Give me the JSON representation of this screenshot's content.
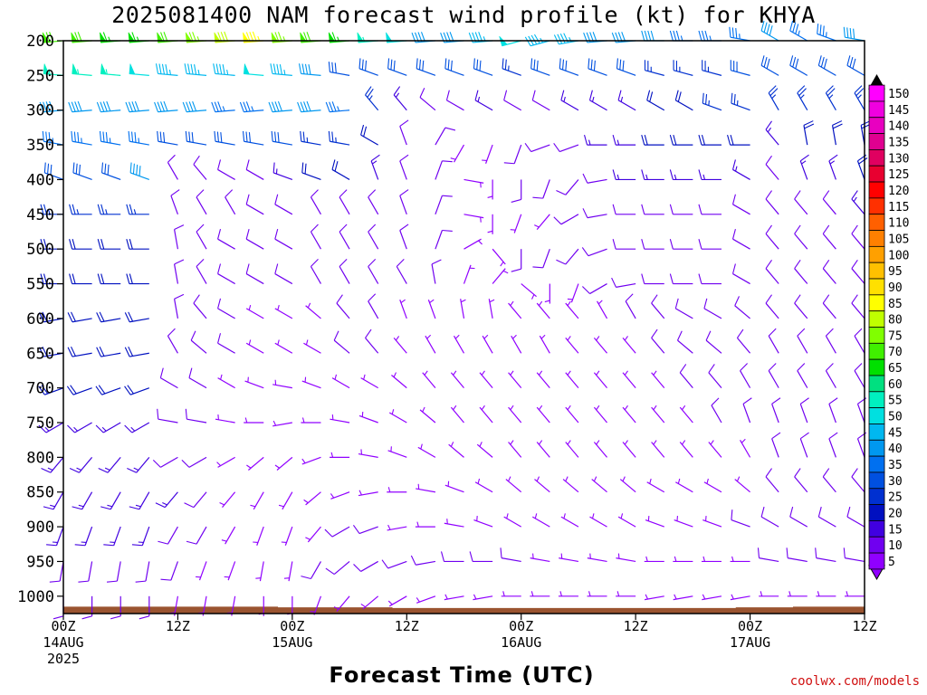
{
  "title": "2025081400 NAM forecast wind profile (kt) for KHYA",
  "xlabel": "Forecast Time (UTC)",
  "credit": "coolwx.com/models",
  "colors": {
    "ground": "#9a5430",
    "frame": "#000000"
  },
  "chart_data": {
    "type": "wind-barb time-height section",
    "y_unit": "hPa",
    "y_ticks": [
      200,
      250,
      300,
      350,
      400,
      450,
      500,
      550,
      600,
      650,
      700,
      750,
      800,
      850,
      900,
      950,
      1000
    ],
    "y_range": [
      1025,
      200
    ],
    "x_range_hours": [
      0,
      84
    ],
    "x_ticks": [
      {
        "h": 0,
        "labels": [
          "00Z",
          "14AUG",
          "2025"
        ]
      },
      {
        "h": 12,
        "labels": [
          "12Z"
        ]
      },
      {
        "h": 24,
        "labels": [
          "00Z",
          "15AUG"
        ]
      },
      {
        "h": 36,
        "labels": [
          "12Z"
        ]
      },
      {
        "h": 48,
        "labels": [
          "00Z",
          "16AUG"
        ]
      },
      {
        "h": 60,
        "labels": [
          "12Z"
        ]
      },
      {
        "h": 72,
        "labels": [
          "00Z",
          "17AUG"
        ]
      },
      {
        "h": 84,
        "labels": [
          "12Z"
        ]
      }
    ],
    "forecast_hours": [
      0,
      3,
      6,
      9,
      12,
      15,
      18,
      21,
      24,
      27,
      30,
      33,
      36,
      39,
      42,
      45,
      48,
      51,
      54,
      57,
      60,
      63,
      66,
      69,
      72,
      75,
      78,
      81,
      84
    ],
    "levels": [
      200,
      250,
      300,
      350,
      400,
      450,
      500,
      550,
      600,
      650,
      700,
      750,
      800,
      850,
      900,
      950,
      1000
    ],
    "speed_kt_by_level": {
      "200": [
        70,
        70,
        65,
        65,
        68,
        75,
        80,
        85,
        75,
        70,
        65,
        55,
        50,
        40,
        40,
        45,
        50,
        45,
        45,
        40,
        40,
        40,
        35,
        35,
        35,
        40,
        35,
        35,
        40
      ],
      "250": [
        55,
        55,
        55,
        50,
        45,
        45,
        45,
        50,
        45,
        40,
        30,
        30,
        30,
        30,
        30,
        30,
        25,
        30,
        30,
        30,
        30,
        25,
        25,
        25,
        30,
        30,
        30,
        30,
        30
      ],
      "300": [
        40,
        40,
        40,
        40,
        40,
        40,
        35,
        35,
        40,
        40,
        35,
        25,
        15,
        10,
        10,
        15,
        10,
        10,
        15,
        15,
        15,
        20,
        20,
        25,
        25,
        25,
        25,
        25,
        25
      ],
      "350": [
        35,
        35,
        35,
        35,
        30,
        30,
        30,
        30,
        30,
        25,
        25,
        20,
        10,
        10,
        5,
        5,
        10,
        10,
        10,
        15,
        15,
        20,
        20,
        20,
        20,
        15,
        20,
        20,
        20
      ],
      "400": [
        30,
        30,
        30,
        40,
        10,
        10,
        10,
        10,
        15,
        20,
        20,
        15,
        10,
        10,
        5,
        5,
        10,
        10,
        10,
        10,
        15,
        15,
        15,
        15,
        15,
        10,
        15,
        15,
        20
      ],
      "450": [
        25,
        25,
        25,
        25,
        10,
        10,
        10,
        10,
        10,
        10,
        10,
        10,
        10,
        10,
        5,
        5,
        5,
        5,
        10,
        10,
        10,
        10,
        10,
        10,
        10,
        10,
        10,
        10,
        15
      ],
      "500": [
        20,
        20,
        20,
        20,
        10,
        10,
        10,
        10,
        10,
        10,
        10,
        10,
        10,
        10,
        5,
        5,
        10,
        10,
        10,
        10,
        10,
        10,
        10,
        10,
        10,
        10,
        10,
        10,
        10
      ],
      "550": [
        20,
        20,
        20,
        20,
        10,
        10,
        10,
        10,
        10,
        10,
        10,
        10,
        10,
        10,
        5,
        5,
        5,
        5,
        5,
        10,
        10,
        10,
        10,
        10,
        10,
        10,
        10,
        10,
        10
      ],
      "600": [
        20,
        20,
        20,
        20,
        10,
        10,
        10,
        5,
        5,
        5,
        10,
        10,
        5,
        5,
        5,
        5,
        5,
        5,
        5,
        5,
        10,
        10,
        10,
        10,
        10,
        10,
        10,
        10,
        10
      ],
      "650": [
        20,
        20,
        20,
        20,
        10,
        10,
        10,
        5,
        5,
        5,
        10,
        10,
        5,
        5,
        5,
        5,
        5,
        5,
        5,
        5,
        5,
        10,
        10,
        10,
        10,
        10,
        10,
        10,
        10
      ],
      "700": [
        20,
        20,
        20,
        20,
        10,
        10,
        5,
        5,
        5,
        5,
        5,
        5,
        5,
        5,
        5,
        5,
        5,
        5,
        5,
        5,
        5,
        5,
        10,
        10,
        10,
        10,
        10,
        10,
        10
      ],
      "750": [
        15,
        15,
        15,
        15,
        10,
        10,
        5,
        5,
        5,
        5,
        5,
        5,
        5,
        5,
        5,
        5,
        5,
        5,
        5,
        5,
        5,
        5,
        5,
        10,
        10,
        10,
        10,
        10,
        10
      ],
      "800": [
        15,
        15,
        15,
        15,
        10,
        10,
        5,
        5,
        5,
        5,
        5,
        5,
        5,
        5,
        5,
        5,
        5,
        5,
        5,
        5,
        5,
        5,
        5,
        5,
        5,
        10,
        10,
        10,
        10
      ],
      "850": [
        15,
        15,
        15,
        15,
        15,
        10,
        5,
        5,
        5,
        5,
        5,
        5,
        5,
        5,
        5,
        5,
        5,
        5,
        5,
        5,
        5,
        5,
        5,
        5,
        5,
        10,
        10,
        10,
        10
      ],
      "900": [
        15,
        15,
        15,
        15,
        10,
        10,
        5,
        5,
        5,
        5,
        10,
        10,
        5,
        5,
        5,
        5,
        5,
        5,
        5,
        5,
        5,
        5,
        5,
        5,
        10,
        10,
        10,
        10,
        10
      ],
      "950": [
        10,
        10,
        10,
        10,
        10,
        5,
        5,
        5,
        5,
        10,
        10,
        10,
        10,
        10,
        10,
        10,
        10,
        5,
        5,
        5,
        5,
        5,
        5,
        5,
        5,
        10,
        10,
        10,
        10
      ],
      "1000": [
        10,
        10,
        10,
        10,
        5,
        5,
        5,
        5,
        5,
        5,
        5,
        5,
        5,
        5,
        5,
        5,
        5,
        5,
        5,
        5,
        5,
        5,
        5,
        5,
        5,
        5,
        5,
        5,
        5
      ]
    },
    "direction_deg_by_level": {
      "200": [
        265,
        265,
        265,
        265,
        265,
        265,
        265,
        265,
        265,
        265,
        265,
        265,
        265,
        265,
        265,
        265,
        255,
        255,
        260,
        265,
        265,
        270,
        270,
        270,
        280,
        300,
        300,
        290,
        280
      ],
      "250": [
        275,
        275,
        275,
        275,
        275,
        275,
        275,
        275,
        275,
        275,
        280,
        290,
        290,
        290,
        290,
        290,
        290,
        290,
        290,
        290,
        290,
        285,
        285,
        285,
        285,
        300,
        300,
        300,
        300
      ],
      "300": [
        265,
        265,
        265,
        265,
        265,
        265,
        265,
        265,
        265,
        265,
        265,
        320,
        320,
        310,
        300,
        300,
        300,
        300,
        300,
        300,
        300,
        300,
        300,
        290,
        290,
        330,
        330,
        330,
        330
      ],
      "350": [
        280,
        280,
        280,
        280,
        280,
        280,
        280,
        280,
        280,
        280,
        280,
        300,
        340,
        30,
        210,
        200,
        200,
        250,
        250,
        270,
        270,
        270,
        270,
        270,
        270,
        320,
        350,
        350,
        350
      ],
      "400": [
        290,
        290,
        290,
        290,
        330,
        320,
        300,
        300,
        290,
        290,
        300,
        340,
        340,
        20,
        100,
        180,
        180,
        200,
        220,
        260,
        270,
        270,
        270,
        270,
        300,
        320,
        340,
        340,
        340
      ],
      "450": [
        270,
        270,
        270,
        270,
        340,
        330,
        330,
        300,
        300,
        330,
        330,
        330,
        340,
        20,
        100,
        180,
        200,
        220,
        240,
        260,
        270,
        270,
        270,
        270,
        300,
        320,
        320,
        320,
        320
      ],
      "500": [
        270,
        270,
        270,
        270,
        350,
        330,
        300,
        300,
        300,
        330,
        330,
        330,
        340,
        20,
        60,
        140,
        180,
        200,
        220,
        250,
        270,
        270,
        270,
        270,
        300,
        320,
        320,
        320,
        320
      ],
      "550": [
        270,
        270,
        270,
        270,
        350,
        330,
        300,
        300,
        300,
        330,
        330,
        330,
        330,
        350,
        20,
        40,
        130,
        180,
        200,
        240,
        260,
        270,
        270,
        270,
        300,
        320,
        320,
        320,
        320
      ],
      "600": [
        260,
        260,
        260,
        260,
        350,
        320,
        300,
        300,
        300,
        310,
        320,
        330,
        340,
        340,
        350,
        350,
        320,
        320,
        320,
        330,
        330,
        320,
        300,
        300,
        310,
        320,
        320,
        320,
        320
      ],
      "650": [
        260,
        260,
        260,
        260,
        330,
        310,
        300,
        300,
        300,
        300,
        310,
        320,
        320,
        330,
        330,
        330,
        330,
        330,
        320,
        320,
        320,
        320,
        310,
        310,
        320,
        330,
        330,
        330,
        330
      ],
      "700": [
        250,
        250,
        250,
        250,
        300,
        300,
        300,
        290,
        280,
        290,
        300,
        300,
        310,
        320,
        320,
        320,
        320,
        320,
        320,
        320,
        320,
        320,
        320,
        320,
        330,
        330,
        330,
        330,
        330
      ],
      "750": [
        240,
        240,
        240,
        240,
        280,
        280,
        280,
        270,
        260,
        270,
        280,
        290,
        300,
        310,
        320,
        320,
        320,
        320,
        320,
        320,
        320,
        320,
        320,
        330,
        340,
        340,
        340,
        340,
        340
      ],
      "800": [
        220,
        220,
        220,
        220,
        240,
        240,
        240,
        230,
        230,
        250,
        270,
        280,
        290,
        300,
        310,
        310,
        320,
        320,
        320,
        320,
        320,
        320,
        320,
        320,
        330,
        340,
        340,
        340,
        340
      ],
      "850": [
        210,
        210,
        210,
        210,
        220,
        220,
        220,
        210,
        210,
        230,
        250,
        260,
        270,
        280,
        290,
        300,
        310,
        310,
        310,
        310,
        310,
        300,
        300,
        300,
        310,
        320,
        320,
        320,
        320
      ],
      "900": [
        200,
        200,
        200,
        200,
        210,
        210,
        210,
        200,
        200,
        220,
        240,
        250,
        260,
        270,
        280,
        290,
        300,
        300,
        300,
        300,
        300,
        290,
        290,
        290,
        290,
        300,
        300,
        300,
        300
      ],
      "950": [
        190,
        190,
        190,
        190,
        200,
        200,
        200,
        190,
        190,
        210,
        230,
        240,
        250,
        260,
        270,
        270,
        280,
        280,
        280,
        280,
        280,
        270,
        270,
        270,
        270,
        280,
        280,
        280,
        280
      ],
      "1000": [
        180,
        180,
        180,
        180,
        190,
        190,
        190,
        180,
        180,
        200,
        220,
        230,
        240,
        250,
        260,
        260,
        270,
        270,
        270,
        270,
        270,
        260,
        260,
        260,
        260,
        270,
        270,
        270,
        270
      ]
    },
    "ground_pressure_hpa": [
      1015,
      1015,
      1015,
      1015,
      1015,
      1015,
      1015,
      1015,
      1016,
      1016,
      1016,
      1016,
      1017,
      1017,
      1017,
      1017,
      1017,
      1017,
      1017,
      1017,
      1017,
      1017,
      1017,
      1017,
      1016,
      1016,
      1015,
      1015,
      1015
    ],
    "colorbar": {
      "labels": [
        "150",
        "145",
        "140",
        "135",
        "130",
        "125",
        "120",
        "115",
        "110",
        "105",
        "100",
        "95",
        "90",
        "85",
        "80",
        "75",
        "70",
        "65",
        "60",
        "55",
        "50",
        "45",
        "40",
        "35",
        "30",
        "25",
        "20",
        "15",
        "10",
        "5"
      ],
      "colors": [
        "#ff00ff",
        "#f000e0",
        "#e800c0",
        "#e00090",
        "#e00060",
        "#e80030",
        "#ff0000",
        "#ff3000",
        "#ff6000",
        "#ff8000",
        "#ffa000",
        "#ffc000",
        "#ffe000",
        "#ffff00",
        "#c0ff00",
        "#80ff00",
        "#40f000",
        "#00e000",
        "#00e080",
        "#00f0c0",
        "#00e0e0",
        "#00b8f0",
        "#0098f0",
        "#0070f0",
        "#0050e0",
        "#0030d0",
        "#0010c0",
        "#4000e0",
        "#7000f0",
        "#9000ff"
      ],
      "top_arrow_color": "#000000",
      "bottom_arrow_color": "#9000ff"
    }
  }
}
